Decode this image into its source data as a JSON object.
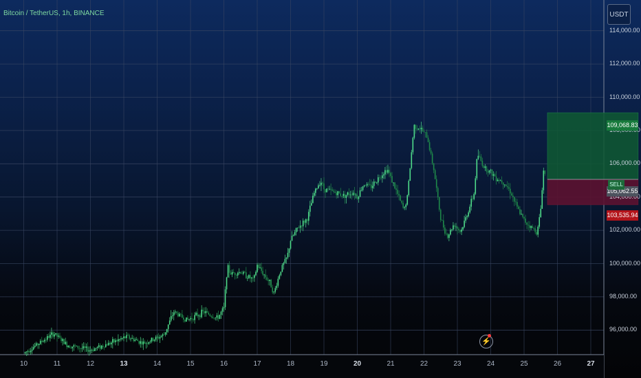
{
  "title": "Bitcoin / TetherUS, 1h, BINANCE",
  "currency_button": "USDT",
  "badges": {
    "target": "109,068.83",
    "entry": "105,062.55",
    "stop": "103,535.94",
    "tag": "SELL"
  },
  "colors": {
    "candle_up": "#4fdc8a",
    "candle_down": "#1f8a4a",
    "profit_zone": "#0f5a33",
    "loss_zone": "#5c1230",
    "target_badge": "#177a3c",
    "stop_badge": "#b3141b"
  },
  "chart_data": {
    "type": "candlestick",
    "symbol": "Bitcoin / TetherUS",
    "interval": "1h",
    "exchange": "BINANCE",
    "x_ticks": [
      "10",
      "11",
      "12",
      "13",
      "14",
      "15",
      "16",
      "17",
      "18",
      "19",
      "20",
      "21",
      "22",
      "23",
      "24",
      "25",
      "26",
      "27"
    ],
    "bold_ticks": [
      "13",
      "20",
      "27"
    ],
    "y_ticks": [
      96000,
      98000,
      100000,
      102000,
      104000,
      106000,
      108000,
      110000,
      112000,
      114000
    ],
    "y_tick_labels": [
      "96,000.00",
      "98,000.00",
      "100,000.00",
      "102,000.00",
      "104,000.00",
      "106,000.00",
      "108,000.00",
      "110,000.00",
      "112,000.00",
      "114,000.00"
    ],
    "ylim": [
      95200,
      116000
    ],
    "grid": true,
    "price_path": [
      [
        10.0,
        94600
      ],
      [
        10.6,
        95400
      ],
      [
        10.9,
        95800
      ],
      [
        11.3,
        95100
      ],
      [
        12.0,
        94800
      ],
      [
        12.7,
        95300
      ],
      [
        13.1,
        95600
      ],
      [
        13.6,
        95200
      ],
      [
        14.2,
        95700
      ],
      [
        14.5,
        97100
      ],
      [
        14.9,
        96600
      ],
      [
        15.4,
        97100
      ],
      [
        15.8,
        96700
      ],
      [
        16.0,
        97300
      ],
      [
        16.1,
        99800
      ],
      [
        16.2,
        99400
      ],
      [
        16.5,
        99500
      ],
      [
        16.9,
        99000
      ],
      [
        17.0,
        99900
      ],
      [
        17.4,
        98800
      ],
      [
        17.5,
        98200
      ],
      [
        17.7,
        99600
      ],
      [
        17.9,
        100400
      ],
      [
        18.0,
        101400
      ],
      [
        18.2,
        102100
      ],
      [
        18.5,
        102700
      ],
      [
        18.7,
        104200
      ],
      [
        18.9,
        105000
      ],
      [
        19.0,
        104500
      ],
      [
        19.3,
        104300
      ],
      [
        19.6,
        104100
      ],
      [
        19.9,
        104300
      ],
      [
        20.0,
        104000
      ],
      [
        20.2,
        104800
      ],
      [
        20.4,
        104600
      ],
      [
        20.7,
        105300
      ],
      [
        20.9,
        105700
      ],
      [
        21.1,
        104700
      ],
      [
        21.4,
        103200
      ],
      [
        21.5,
        104000
      ],
      [
        21.7,
        108300
      ],
      [
        21.9,
        108100
      ],
      [
        22.1,
        107600
      ],
      [
        22.3,
        105600
      ],
      [
        22.4,
        104100
      ],
      [
        22.5,
        102700
      ],
      [
        22.7,
        101600
      ],
      [
        22.9,
        102400
      ],
      [
        23.1,
        101900
      ],
      [
        23.3,
        103000
      ],
      [
        23.5,
        104200
      ],
      [
        23.6,
        106600
      ],
      [
        23.8,
        105800
      ],
      [
        24.0,
        105500
      ],
      [
        24.2,
        105100
      ],
      [
        24.4,
        104900
      ],
      [
        24.6,
        104300
      ],
      [
        24.8,
        103300
      ],
      [
        25.0,
        102600
      ],
      [
        25.2,
        102200
      ],
      [
        25.4,
        101900
      ],
      [
        25.5,
        103300
      ],
      [
        25.58,
        105600
      ],
      [
        25.66,
        105200
      ]
    ],
    "position": {
      "side": "long",
      "target": 109068.83,
      "entry": 105062.55,
      "stop": 103535.94,
      "start_day": 25.7,
      "end_day": 28.42
    }
  }
}
